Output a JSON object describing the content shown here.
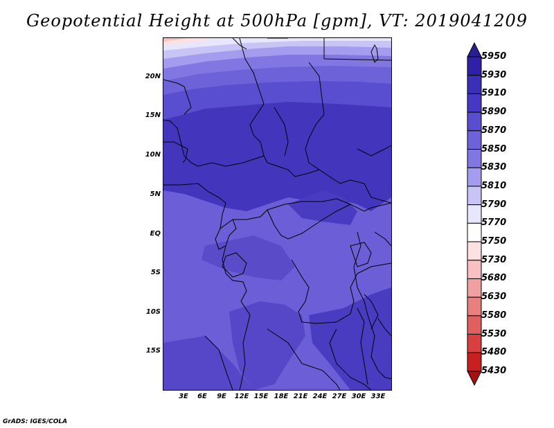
{
  "title": "Geopotential Height at 500hPa [gpm], VT: 2019041209",
  "footer": "GrADS: IGES/COLA",
  "map": {
    "lat_labels": [
      "20N",
      "15N",
      "10N",
      "5N",
      "EQ",
      "5S",
      "10S",
      "15S"
    ],
    "lat_values": [
      20,
      15,
      10,
      5,
      0,
      -5,
      -10,
      -15
    ],
    "lon_labels": [
      "3E",
      "6E",
      "9E",
      "12E",
      "15E",
      "18E",
      "21E",
      "24E",
      "27E",
      "30E",
      "33E"
    ],
    "lon_values": [
      3,
      6,
      9,
      12,
      15,
      18,
      21,
      24,
      27,
      30,
      33
    ]
  },
  "colorbar": {
    "labels": [
      "5950",
      "5930",
      "5910",
      "5890",
      "5870",
      "5850",
      "5830",
      "5810",
      "5790",
      "5770",
      "5750",
      "5730",
      "5680",
      "5630",
      "5580",
      "5530",
      "5480",
      "5430"
    ],
    "colors": [
      "#2a1e96",
      "#3020a8",
      "#3a30b8",
      "#4638c4",
      "#5a4ed0",
      "#6e62d8",
      "#8276e2",
      "#a49cee",
      "#c8c4f6",
      "#e8e6fc",
      "#ffffff",
      "#fde0e0",
      "#f8c0c0",
      "#f0a0a0",
      "#e88080",
      "#e06060",
      "#d84040",
      "#c82020",
      "#a81010"
    ]
  }
}
